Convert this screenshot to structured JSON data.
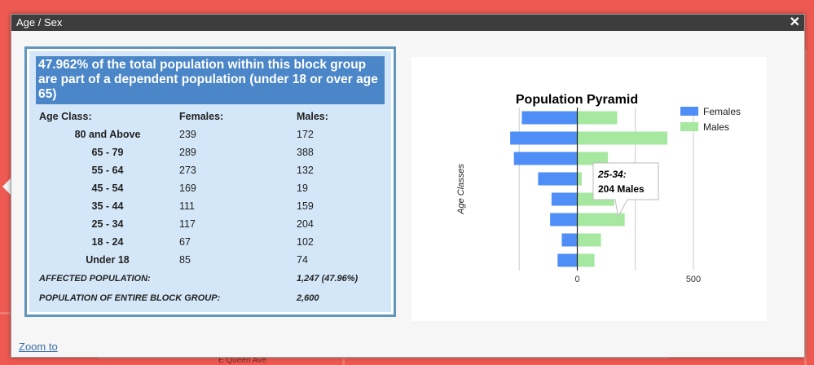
{
  "popup": {
    "title": "Age / Sex",
    "close_icon": "close-icon",
    "zoom_link": "Zoom to"
  },
  "map": {
    "street_label": "E Queen Ave"
  },
  "info": {
    "headline": "47.962% of the total population within this block group are part of a dependent population (under 18 or over age 65)",
    "columns": [
      "Age Class:",
      "Females:",
      "Males:"
    ],
    "rows": [
      {
        "age": "80 and Above",
        "females": "239",
        "males": "172"
      },
      {
        "age": "65 - 79",
        "females": "289",
        "males": "388"
      },
      {
        "age": "55 - 64",
        "females": "273",
        "males": "132"
      },
      {
        "age": "45 - 54",
        "females": "169",
        "males": "19"
      },
      {
        "age": "35 - 44",
        "females": "111",
        "males": "159"
      },
      {
        "age": "25 - 34",
        "females": "117",
        "males": "204"
      },
      {
        "age": "18 - 24",
        "females": "67",
        "males": "102"
      },
      {
        "age": "Under 18",
        "females": "85",
        "males": "74"
      }
    ],
    "affected_label": "AFFECTED POPULATION:",
    "affected_value": "1,247 (47.96%)",
    "total_label": "POPULATION OF ENTIRE BLOCK GROUP:",
    "total_value": "2,600"
  },
  "tooltip": {
    "line1": "25-34:",
    "line2": "204 Males"
  },
  "chart_data": {
    "type": "bar",
    "orientation": "horizontal-pyramid",
    "title": "Population Pyramid",
    "ylabel": "Age Classes",
    "xlabel": "",
    "xlim": [
      -300,
      500
    ],
    "xticks": [
      0,
      500
    ],
    "categories": [
      "80 and Above",
      "65 - 79",
      "55 - 64",
      "45 - 54",
      "35 - 44",
      "25 - 34",
      "18 - 24",
      "Under 18"
    ],
    "series": [
      {
        "name": "Females",
        "values": [
          239,
          289,
          273,
          169,
          111,
          117,
          67,
          85
        ],
        "color": "#4f8ef7"
      },
      {
        "name": "Males",
        "values": [
          172,
          388,
          132,
          19,
          159,
          204,
          102,
          74
        ],
        "color": "#a6e8a0"
      }
    ],
    "legend_position": "right",
    "grid": true
  },
  "colors": {
    "map_background": "#ee5a52",
    "title_bar": "#3d3d3d",
    "panel_border": "#5f96bd",
    "panel_fill": "#d4e7f8",
    "headline_fill": "#4a86c8"
  }
}
